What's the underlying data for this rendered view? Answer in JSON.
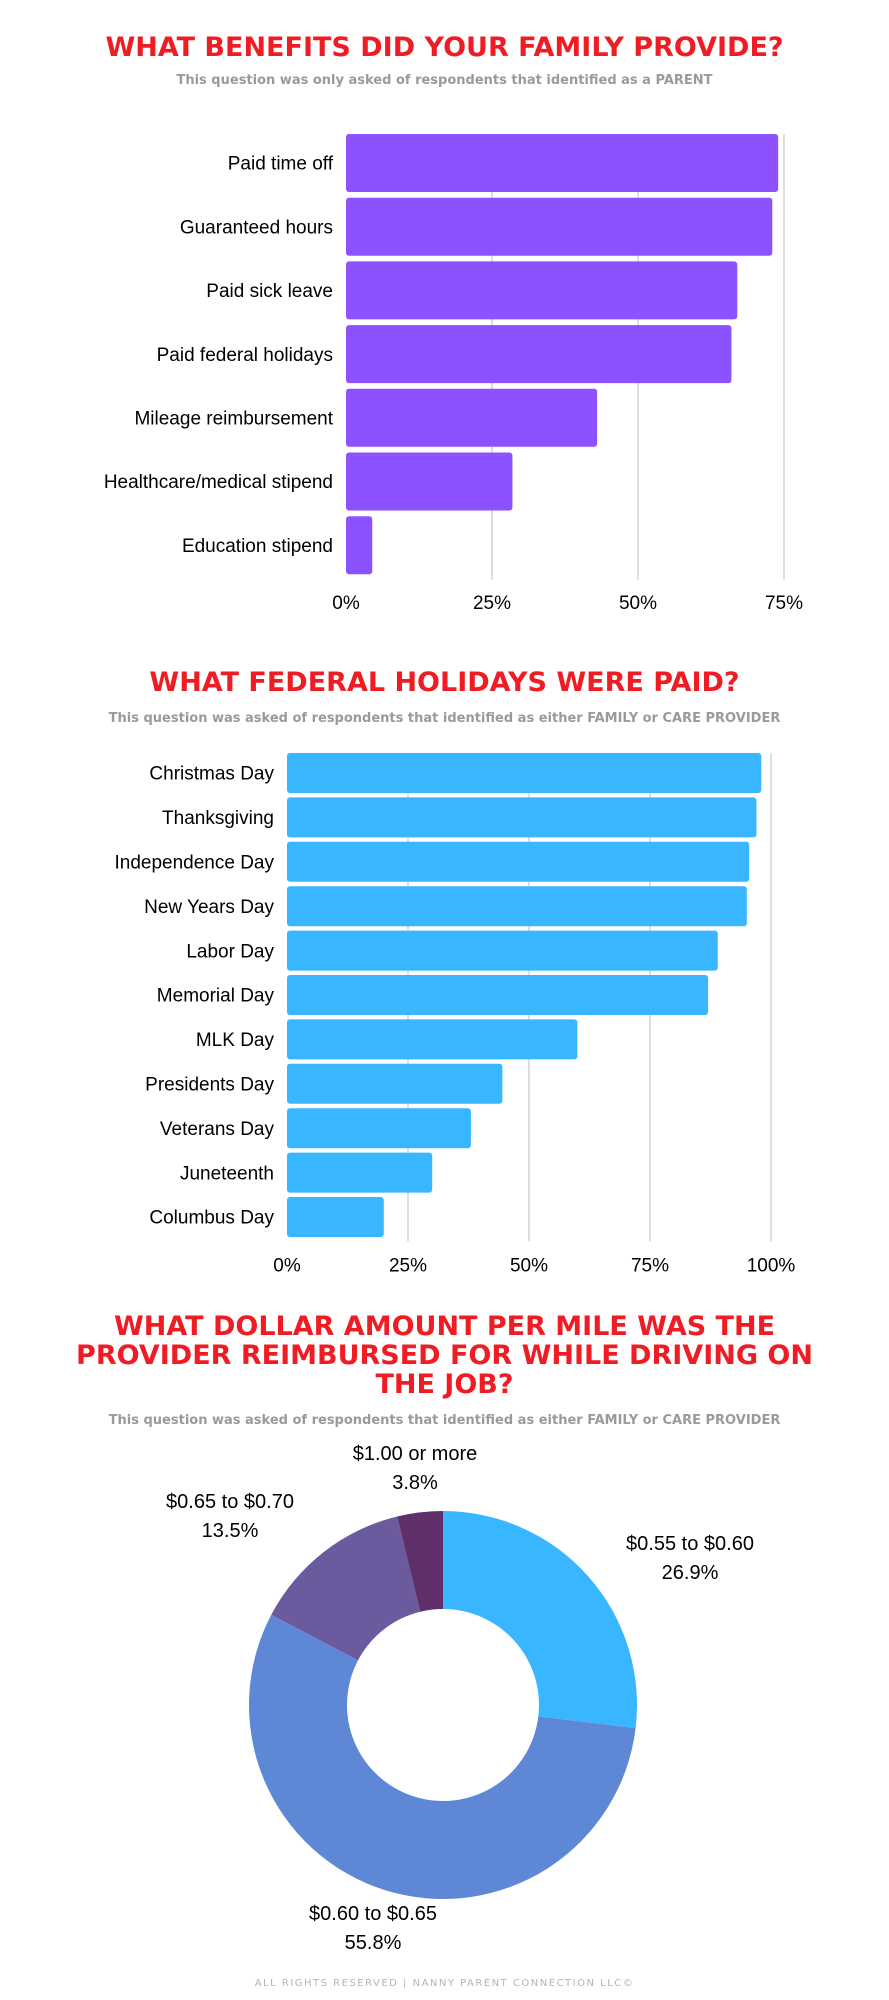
{
  "footer": "ALL RIGHTS RESERVED | NANNY PARENT CONNECTION LLC©",
  "chart_data": [
    {
      "type": "bar",
      "orientation": "horizontal",
      "title": "WHAT BENEFITS DID YOUR FAMILY PROVIDE?",
      "subtitle": "This question was only asked of respondents that identified as a PARENT",
      "categories": [
        "Paid time off",
        "Guaranteed hours",
        "Paid sick leave",
        "Paid federal holidays",
        "Mileage reimbursement",
        "Healthcare/medical stipend",
        "Education stipend"
      ],
      "values": [
        74,
        73,
        67,
        66,
        43,
        28.5,
        4.5
      ],
      "unit": "%",
      "xlim": [
        0,
        75
      ],
      "ticks": [
        "0%",
        "25%",
        "50%",
        "75%"
      ],
      "tick_values": [
        0,
        25,
        50,
        75
      ],
      "grid": true,
      "color": "#8c52ff"
    },
    {
      "type": "bar",
      "orientation": "horizontal",
      "title": "WHAT FEDERAL HOLIDAYS WERE PAID?",
      "subtitle": "This question was asked of respondents that identified as either FAMILY or CARE PROVIDER",
      "categories": [
        "Christmas Day",
        "Thanksgiving",
        "Independence Day",
        "New Years Day",
        "Labor Day",
        "Memorial Day",
        "MLK Day",
        "Presidents Day",
        "Veterans Day",
        "Juneteenth",
        "Columbus Day"
      ],
      "values": [
        98,
        97,
        95.5,
        95,
        89,
        87,
        60,
        44.5,
        38,
        30,
        20
      ],
      "unit": "%",
      "xlim": [
        0,
        100
      ],
      "ticks": [
        "0%",
        "25%",
        "50%",
        "75%",
        "100%"
      ],
      "tick_values": [
        0,
        25,
        50,
        75,
        100
      ],
      "grid": true,
      "color": "#38b6ff"
    },
    {
      "type": "pie",
      "donut": true,
      "title": "WHAT DOLLAR AMOUNT PER MILE WAS THE PROVIDER REIMBURSED FOR WHILE DRIVING ON THE JOB?",
      "subtitle": "This question was asked of respondents that identified as either FAMILY or CARE PROVIDER",
      "slices": [
        {
          "label": "$0.55 to $0.60",
          "value": 26.9,
          "display": "26.9%",
          "color": "#38b6ff"
        },
        {
          "label": "$0.60 to $0.65",
          "value": 55.8,
          "display": "55.8%",
          "color": "#5e88d6"
        },
        {
          "label": "$0.65 to $0.70",
          "value": 13.5,
          "display": "13.5%",
          "color": "#6b5b9e"
        },
        {
          "label": "$1.00 or more",
          "value": 3.8,
          "display": "3.8%",
          "color": "#602e6a"
        }
      ]
    }
  ]
}
